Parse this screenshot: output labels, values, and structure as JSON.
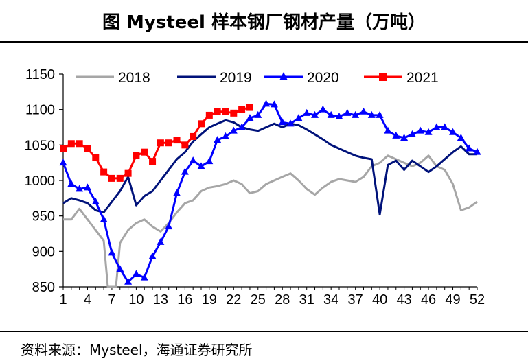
{
  "header": {
    "title": "图  Mysteel 样本钢厂钢材产量（万吨）"
  },
  "footer": {
    "source": "资料来源：Mysteel，海通证券研究所"
  },
  "chart_data": {
    "type": "line",
    "title": "",
    "xlabel": "",
    "ylabel": "",
    "ylim": [
      850,
      1150
    ],
    "yticks": [
      850,
      900,
      950,
      1000,
      1050,
      1100,
      1150
    ],
    "xlim": [
      1,
      52
    ],
    "xticks": [
      1,
      4,
      7,
      10,
      13,
      16,
      19,
      22,
      25,
      28,
      31,
      34,
      37,
      40,
      43,
      46,
      49,
      52
    ],
    "grid": false,
    "legend": "top",
    "series": [
      {
        "name": "2018",
        "color": "#a6a6a6",
        "marker": "none",
        "points": [
          [
            1,
            945
          ],
          [
            2,
            945
          ],
          [
            3,
            960
          ],
          [
            4,
            945
          ],
          [
            5,
            930
          ],
          [
            6,
            915
          ],
          [
            6.5,
            850
          ],
          [
            7.5,
            850
          ],
          [
            8,
            912
          ],
          [
            9,
            930
          ],
          [
            10,
            940
          ],
          [
            11,
            945
          ],
          [
            12,
            935
          ],
          [
            13,
            928
          ],
          [
            14,
            940
          ],
          [
            15,
            955
          ],
          [
            16,
            968
          ],
          [
            17,
            972
          ],
          [
            18,
            985
          ],
          [
            19,
            990
          ],
          [
            20,
            992
          ],
          [
            21,
            995
          ],
          [
            22,
            1000
          ],
          [
            23,
            995
          ],
          [
            24,
            982
          ],
          [
            25,
            985
          ],
          [
            26,
            995
          ],
          [
            27,
            1000
          ],
          [
            28,
            1005
          ],
          [
            29,
            1010
          ],
          [
            30,
            1000
          ],
          [
            31,
            988
          ],
          [
            32,
            980
          ],
          [
            33,
            990
          ],
          [
            34,
            998
          ],
          [
            35,
            1002
          ],
          [
            36,
            1000
          ],
          [
            37,
            998
          ],
          [
            38,
            1005
          ],
          [
            39,
            1020
          ],
          [
            40,
            1025
          ],
          [
            41,
            1035
          ],
          [
            42,
            1030
          ],
          [
            43,
            1025
          ],
          [
            44,
            1020
          ],
          [
            45,
            1025
          ],
          [
            46,
            1035
          ],
          [
            47,
            1020
          ],
          [
            48,
            1015
          ],
          [
            49,
            995
          ],
          [
            50,
            958
          ],
          [
            51,
            962
          ],
          [
            52,
            970
          ]
        ]
      },
      {
        "name": "2019",
        "color": "#00127a",
        "marker": "none",
        "points": [
          [
            1,
            968
          ],
          [
            2,
            975
          ],
          [
            3,
            972
          ],
          [
            4,
            968
          ],
          [
            5,
            958
          ],
          [
            6,
            955
          ],
          [
            7,
            970
          ],
          [
            8,
            985
          ],
          [
            9,
            1005
          ],
          [
            10,
            965
          ],
          [
            11,
            978
          ],
          [
            12,
            985
          ],
          [
            13,
            1000
          ],
          [
            14,
            1015
          ],
          [
            15,
            1030
          ],
          [
            16,
            1040
          ],
          [
            17,
            1055
          ],
          [
            18,
            1065
          ],
          [
            19,
            1075
          ],
          [
            20,
            1080
          ],
          [
            21,
            1085
          ],
          [
            22,
            1082
          ],
          [
            23,
            1075
          ],
          [
            24,
            1072
          ],
          [
            25,
            1070
          ],
          [
            26,
            1075
          ],
          [
            27,
            1080
          ],
          [
            28,
            1075
          ],
          [
            29,
            1080
          ],
          [
            30,
            1078
          ],
          [
            31,
            1072
          ],
          [
            32,
            1065
          ],
          [
            33,
            1058
          ],
          [
            34,
            1050
          ],
          [
            35,
            1045
          ],
          [
            36,
            1040
          ],
          [
            37,
            1035
          ],
          [
            38,
            1032
          ],
          [
            39,
            1030
          ],
          [
            40,
            952
          ],
          [
            41,
            1022
          ],
          [
            42,
            1028
          ],
          [
            43,
            1015
          ],
          [
            44,
            1028
          ],
          [
            45,
            1020
          ],
          [
            46,
            1012
          ],
          [
            47,
            1020
          ],
          [
            48,
            1030
          ],
          [
            49,
            1040
          ],
          [
            50,
            1048
          ],
          [
            51,
            1037
          ],
          [
            52,
            1037
          ]
        ]
      },
      {
        "name": "2020",
        "color": "#0000ff",
        "marker": "triangle",
        "points": [
          [
            1,
            1025
          ],
          [
            2,
            995
          ],
          [
            3,
            988
          ],
          [
            4,
            990
          ],
          [
            5,
            970
          ],
          [
            6,
            945
          ],
          [
            7,
            898
          ],
          [
            8,
            875
          ],
          [
            9,
            857
          ],
          [
            10,
            868
          ],
          [
            11,
            863
          ],
          [
            12,
            893
          ],
          [
            13,
            913
          ],
          [
            14,
            935
          ],
          [
            15,
            982
          ],
          [
            16,
            1012
          ],
          [
            17,
            1028
          ],
          [
            18,
            1020
          ],
          [
            19,
            1027
          ],
          [
            20,
            1057
          ],
          [
            21,
            1062
          ],
          [
            22,
            1070
          ],
          [
            23,
            1075
          ],
          [
            24,
            1088
          ],
          [
            25,
            1092
          ],
          [
            26,
            1108
          ],
          [
            27,
            1107
          ],
          [
            28,
            1082
          ],
          [
            29,
            1080
          ],
          [
            30,
            1088
          ],
          [
            31,
            1095
          ],
          [
            32,
            1092
          ],
          [
            33,
            1100
          ],
          [
            34,
            1092
          ],
          [
            35,
            1090
          ],
          [
            36,
            1095
          ],
          [
            37,
            1092
          ],
          [
            38,
            1097
          ],
          [
            39,
            1092
          ],
          [
            40,
            1092
          ],
          [
            41,
            1070
          ],
          [
            42,
            1063
          ],
          [
            43,
            1060
          ],
          [
            44,
            1065
          ],
          [
            45,
            1070
          ],
          [
            46,
            1068
          ],
          [
            47,
            1075
          ],
          [
            48,
            1075
          ],
          [
            49,
            1068
          ],
          [
            50,
            1060
          ],
          [
            51,
            1045
          ],
          [
            52,
            1040
          ]
        ]
      },
      {
        "name": "2021",
        "color": "#ff0000",
        "marker": "square",
        "points": [
          [
            1,
            1045
          ],
          [
            2,
            1052
          ],
          [
            3,
            1052
          ],
          [
            4,
            1045
          ],
          [
            5,
            1032
          ],
          [
            6,
            1012
          ],
          [
            7,
            1003
          ],
          [
            8,
            1003
          ],
          [
            9,
            1010
          ],
          [
            10,
            1035
          ],
          [
            11,
            1040
          ],
          [
            12,
            1027
          ],
          [
            13,
            1053
          ],
          [
            14,
            1053
          ],
          [
            15,
            1057
          ],
          [
            16,
            1050
          ],
          [
            17,
            1062
          ],
          [
            18,
            1080
          ],
          [
            19,
            1092
          ],
          [
            20,
            1097
          ],
          [
            21,
            1097
          ],
          [
            22,
            1095
          ],
          [
            23,
            1100
          ],
          [
            24,
            1103
          ]
        ]
      }
    ]
  }
}
